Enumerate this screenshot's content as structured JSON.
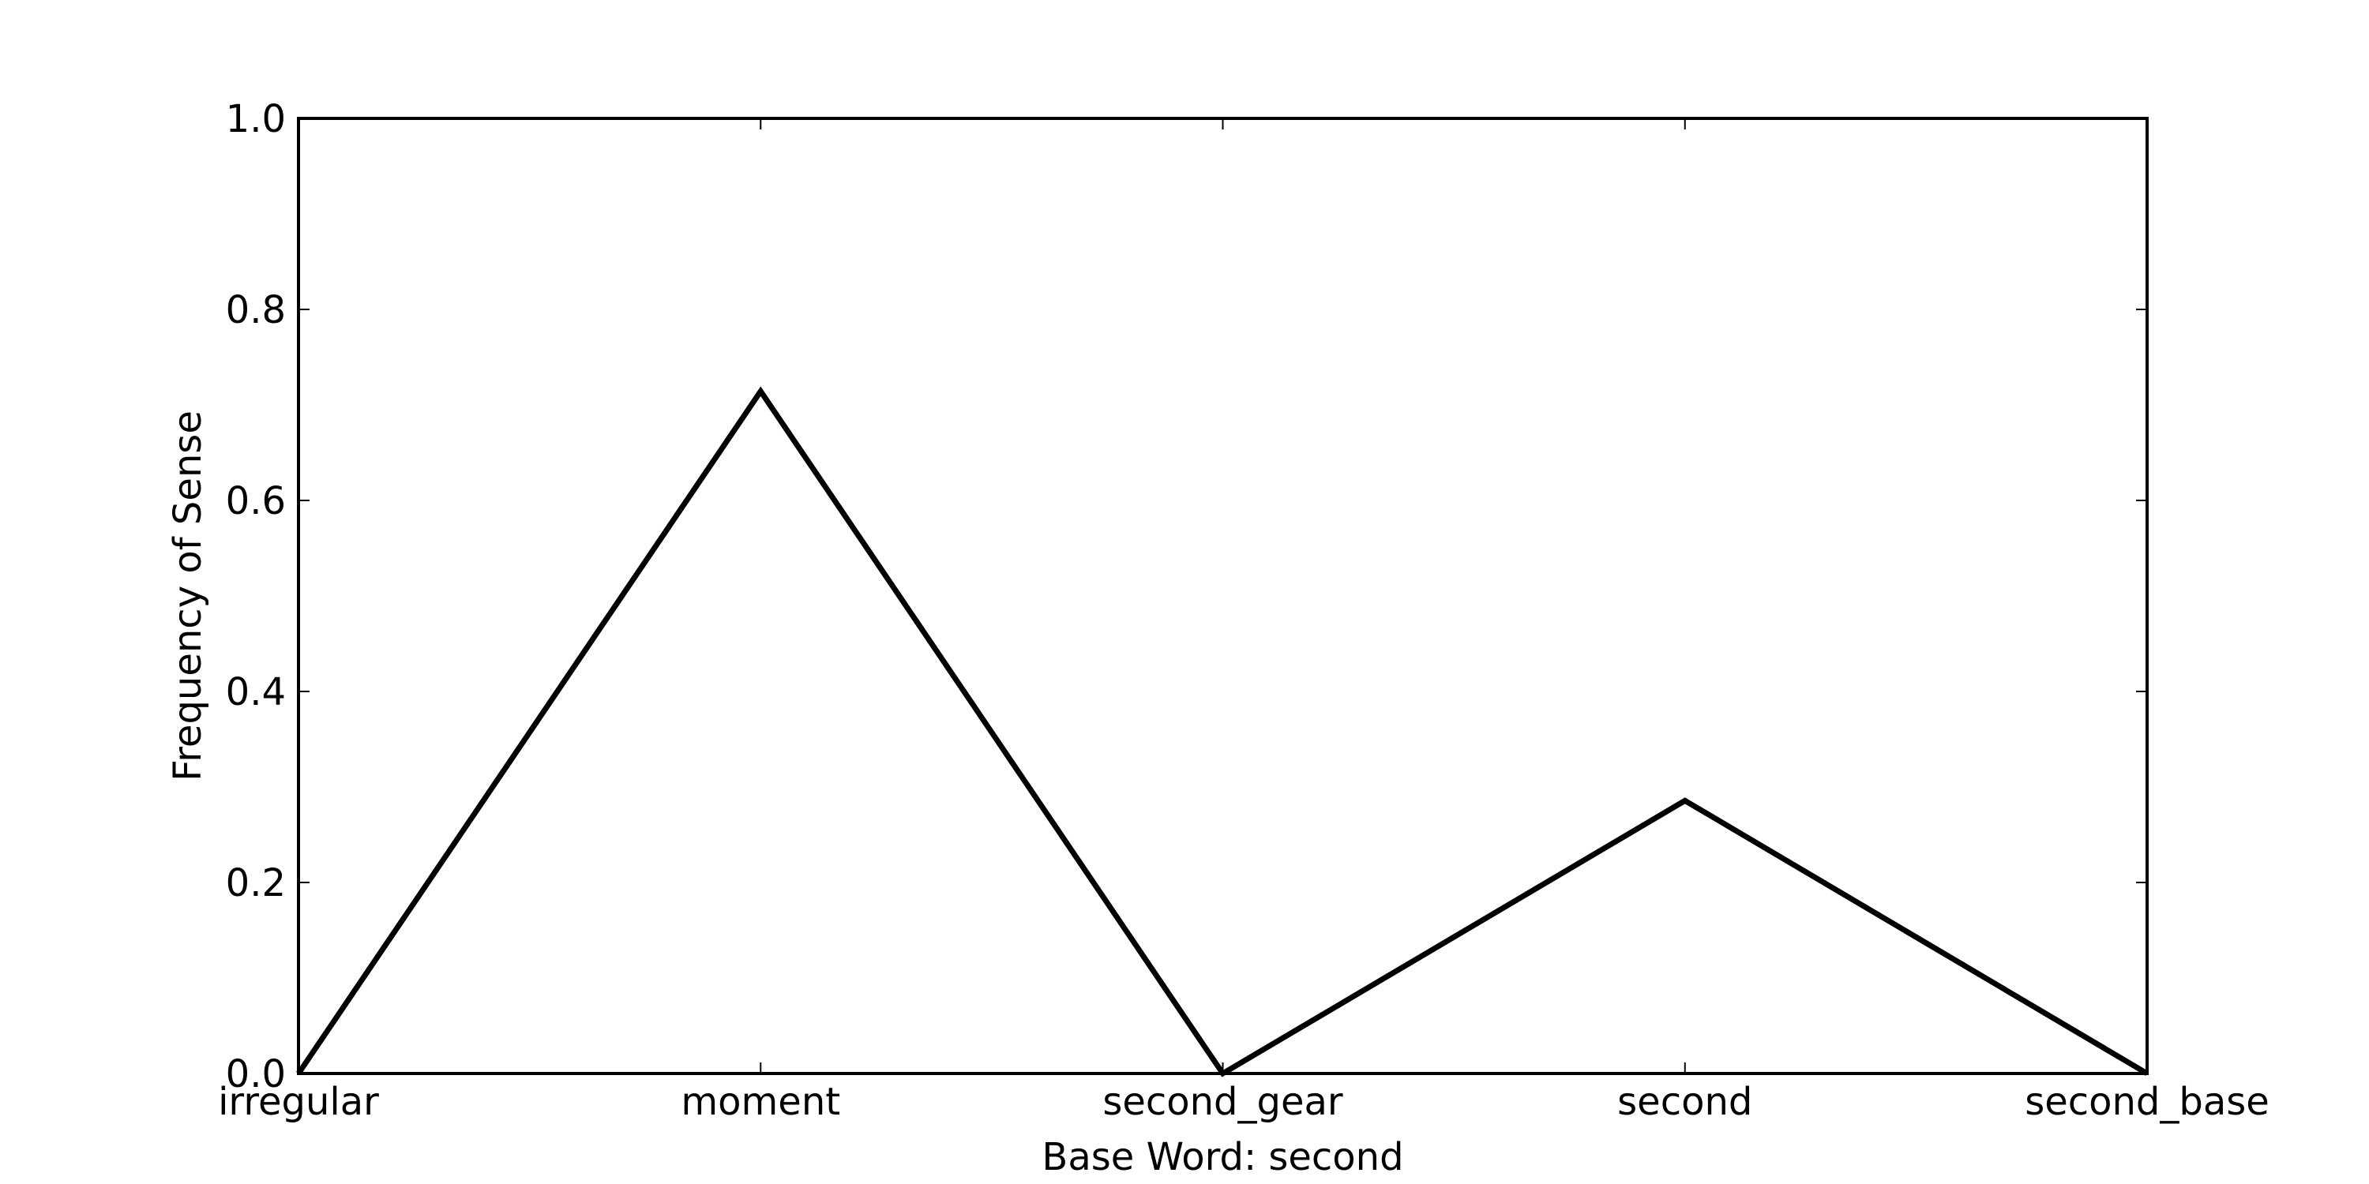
{
  "chart_data": {
    "type": "line",
    "title": "",
    "xlabel": "Base Word: second",
    "ylabel": "Frequency of Sense",
    "categories": [
      "irregular",
      "moment",
      "second_gear",
      "second",
      "second_base"
    ],
    "series": [
      {
        "values": [
          0.0,
          0.7143,
          0.0,
          0.2857,
          0.0
        ]
      }
    ],
    "ylim": [
      0.0,
      1.0
    ],
    "yticks": [
      "0.0",
      "0.2",
      "0.4",
      "0.6",
      "0.8",
      "1.0"
    ],
    "grid": false,
    "line_color": "#000000"
  }
}
